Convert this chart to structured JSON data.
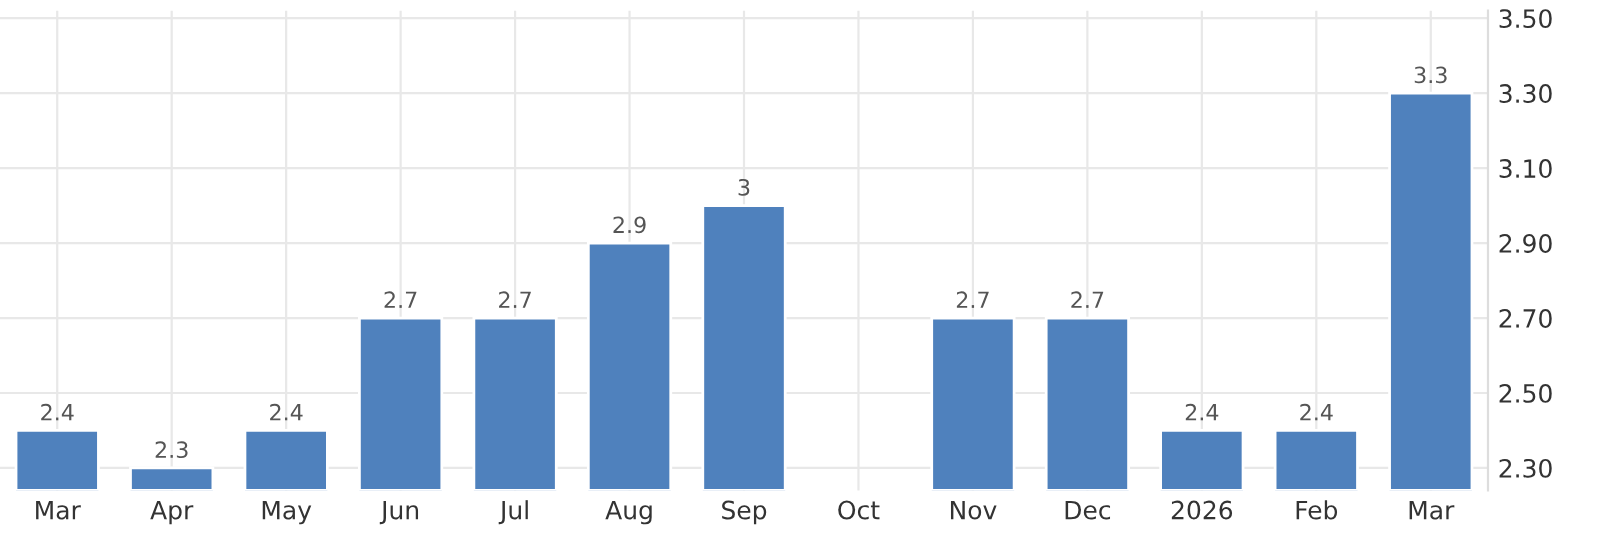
{
  "chart_data": {
    "type": "bar",
    "categories": [
      "Mar",
      "Apr",
      "May",
      "Jun",
      "Jul",
      "Aug",
      "Sep",
      "Oct",
      "Nov",
      "Dec",
      "2026",
      "Feb",
      "Mar"
    ],
    "values": [
      2.4,
      2.3,
      2.4,
      2.7,
      2.7,
      2.9,
      3,
      null,
      2.7,
      2.7,
      2.4,
      2.4,
      3.3
    ],
    "color": "#4f81bd",
    "data_labels": true,
    "grid": true,
    "ylim": [
      2.24,
      3.52
    ],
    "yticks": [
      {
        "value": 2.3,
        "label": "2.30"
      },
      {
        "value": 2.5,
        "label": "2.50"
      },
      {
        "value": 2.7,
        "label": "2.70"
      },
      {
        "value": 2.9,
        "label": "2.90"
      },
      {
        "value": 3.1,
        "label": "3.10"
      },
      {
        "value": 3.3,
        "label": "3.30"
      },
      {
        "value": 3.5,
        "label": "3.50"
      }
    ]
  }
}
